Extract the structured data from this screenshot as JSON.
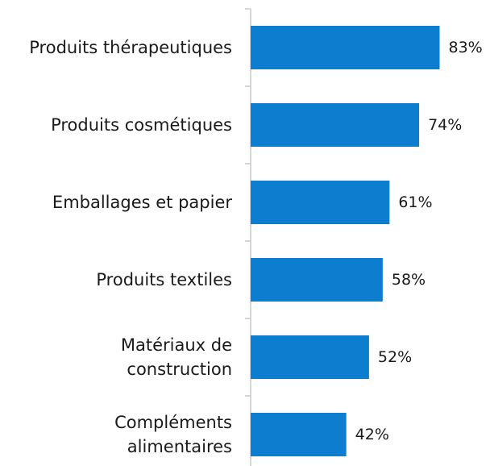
{
  "chart_data": {
    "type": "bar",
    "orientation": "horizontal",
    "categories": [
      [
        "Produits thérapeutiques"
      ],
      [
        "Produits cosmétiques"
      ],
      [
        "Emballages et papier"
      ],
      [
        "Produits textiles"
      ],
      [
        "Matériaux de",
        "construction"
      ],
      [
        "Compléments",
        "alimentaires"
      ]
    ],
    "values": [
      83,
      74,
      61,
      58,
      52,
      42
    ],
    "value_labels": [
      "83%",
      "74%",
      "61%",
      "58%",
      "52%",
      "42%"
    ],
    "unit": "%",
    "xlim": [
      0,
      100
    ],
    "grid": false,
    "legend": "none",
    "bar_color": "#0d7dd0",
    "axis_color": "#c8c8c8"
  }
}
